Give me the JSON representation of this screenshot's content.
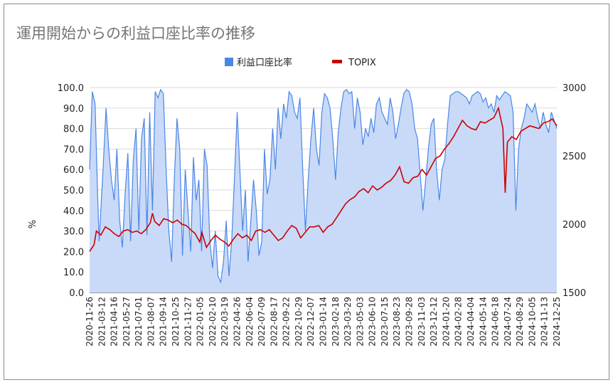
{
  "chart_data": {
    "type": "area+line",
    "title": "運用開始からの利益口座比率の推移",
    "ylabel": "%",
    "ylabel_right": "",
    "legend": [
      "利益口座比率",
      "TOPIX"
    ],
    "legend_position": "top",
    "ylim": [
      0,
      100
    ],
    "ylim_right": [
      1500,
      3000
    ],
    "yticks": [
      "0.0",
      "10.0",
      "20.0",
      "30.0",
      "40.0",
      "50.0",
      "60.0",
      "70.0",
      "80.0",
      "90.0",
      "100.0"
    ],
    "yticks_right": [
      "1500",
      "2000",
      "2500",
      "3000"
    ],
    "xticks": [
      "2020-11-26",
      "2021-03-12",
      "2021-04-16",
      "2021-05-27",
      "2021-07-01",
      "2021-08-07",
      "2021-09-14",
      "2021-10-25",
      "2021-11-27",
      "2022-01-05",
      "2022-02-10",
      "2022-03-19",
      "2022-04-26",
      "2022-06-04",
      "2022-07-09",
      "2022-08-17",
      "2022-09-22",
      "2022-10-29",
      "2022-12-07",
      "2023-01-14",
      "2023-02-18",
      "2023-03-29",
      "2023-05-03",
      "2023-06-10",
      "2023-07-15",
      "2023-08-23",
      "2023-09-28",
      "2023-11-03",
      "2023-12-12",
      "2024-01-20",
      "2024-02-28",
      "2024-04-04",
      "2024-05-14",
      "2024-06-18",
      "2024-07-24",
      "2024-08-29",
      "2024-10-05",
      "2024-11-13",
      "2024-12-25"
    ],
    "series": [
      {
        "name": "利益口座比率",
        "axis": "left",
        "color": "#4a86e8",
        "fill": "#c9daf8",
        "values": [
          [
            0.0,
            60
          ],
          [
            0.1,
            98
          ],
          [
            0.2,
            92
          ],
          [
            0.3,
            45
          ],
          [
            0.35,
            25
          ],
          [
            0.5,
            62
          ],
          [
            0.6,
            90
          ],
          [
            0.7,
            70
          ],
          [
            0.8,
            55
          ],
          [
            0.9,
            45
          ],
          [
            1.0,
            70
          ],
          [
            1.1,
            35
          ],
          [
            1.2,
            22
          ],
          [
            1.3,
            48
          ],
          [
            1.4,
            68
          ],
          [
            1.5,
            25
          ],
          [
            1.6,
            65
          ],
          [
            1.7,
            80
          ],
          [
            1.8,
            30
          ],
          [
            1.9,
            75
          ],
          [
            2.0,
            85
          ],
          [
            2.1,
            28
          ],
          [
            2.2,
            88
          ],
          [
            2.3,
            40
          ],
          [
            2.4,
            98
          ],
          [
            2.5,
            95
          ],
          [
            2.6,
            99
          ],
          [
            2.7,
            97
          ],
          [
            2.8,
            60
          ],
          [
            2.9,
            30
          ],
          [
            3.0,
            15
          ],
          [
            3.1,
            55
          ],
          [
            3.2,
            85
          ],
          [
            3.3,
            70
          ],
          [
            3.4,
            18
          ],
          [
            3.5,
            60
          ],
          [
            3.6,
            40
          ],
          [
            3.7,
            20
          ],
          [
            3.8,
            66
          ],
          [
            3.9,
            45
          ],
          [
            4.0,
            55
          ],
          [
            4.1,
            20
          ],
          [
            4.2,
            70
          ],
          [
            4.3,
            62
          ],
          [
            4.4,
            25
          ],
          [
            4.5,
            12
          ],
          [
            4.6,
            30
          ],
          [
            4.7,
            8
          ],
          [
            4.8,
            5
          ],
          [
            4.9,
            15
          ],
          [
            5.0,
            35
          ],
          [
            5.1,
            8
          ],
          [
            5.2,
            25
          ],
          [
            5.3,
            55
          ],
          [
            5.4,
            88
          ],
          [
            5.5,
            60
          ],
          [
            5.6,
            30
          ],
          [
            5.7,
            50
          ],
          [
            5.8,
            15
          ],
          [
            5.9,
            35
          ],
          [
            6.0,
            55
          ],
          [
            6.1,
            40
          ],
          [
            6.2,
            18
          ],
          [
            6.3,
            25
          ],
          [
            6.4,
            70
          ],
          [
            6.5,
            48
          ],
          [
            6.6,
            55
          ],
          [
            6.7,
            80
          ],
          [
            6.8,
            60
          ],
          [
            6.9,
            90
          ],
          [
            7.0,
            75
          ],
          [
            7.1,
            92
          ],
          [
            7.2,
            85
          ],
          [
            7.3,
            98
          ],
          [
            7.4,
            96
          ],
          [
            7.5,
            88
          ],
          [
            7.6,
            85
          ],
          [
            7.7,
            95
          ],
          [
            7.8,
            60
          ],
          [
            7.9,
            30
          ],
          [
            8.0,
            55
          ],
          [
            8.1,
            75
          ],
          [
            8.2,
            90
          ],
          [
            8.3,
            70
          ],
          [
            8.4,
            62
          ],
          [
            8.5,
            88
          ],
          [
            8.6,
            97
          ],
          [
            8.7,
            95
          ],
          [
            8.8,
            90
          ],
          [
            8.9,
            75
          ],
          [
            9.0,
            55
          ],
          [
            9.1,
            78
          ],
          [
            9.2,
            90
          ],
          [
            9.3,
            98
          ],
          [
            9.4,
            99
          ],
          [
            9.5,
            97
          ],
          [
            9.6,
            98
          ],
          [
            9.7,
            80
          ],
          [
            9.8,
            95
          ],
          [
            9.9,
            88
          ],
          [
            10.0,
            72
          ],
          [
            10.1,
            80
          ],
          [
            10.2,
            76
          ],
          [
            10.3,
            85
          ],
          [
            10.4,
            78
          ],
          [
            10.5,
            92
          ],
          [
            10.6,
            95
          ],
          [
            10.7,
            88
          ],
          [
            10.8,
            85
          ],
          [
            10.9,
            82
          ],
          [
            11.0,
            95
          ],
          [
            11.1,
            88
          ],
          [
            11.2,
            75
          ],
          [
            11.3,
            82
          ],
          [
            11.4,
            90
          ],
          [
            11.5,
            97
          ],
          [
            11.6,
            99
          ],
          [
            11.7,
            98
          ],
          [
            11.8,
            92
          ],
          [
            11.9,
            80
          ],
          [
            12.0,
            75
          ],
          [
            12.1,
            58
          ],
          [
            12.2,
            40
          ],
          [
            12.3,
            55
          ],
          [
            12.4,
            70
          ],
          [
            12.5,
            82
          ],
          [
            12.6,
            85
          ],
          [
            12.7,
            60
          ],
          [
            12.8,
            45
          ],
          [
            12.9,
            60
          ],
          [
            13.0,
            65
          ],
          [
            13.1,
            82
          ],
          [
            13.2,
            96
          ],
          [
            13.3,
            97
          ],
          [
            13.4,
            98
          ],
          [
            13.5,
            98
          ],
          [
            13.6,
            97
          ],
          [
            13.7,
            96
          ],
          [
            13.8,
            95
          ],
          [
            13.9,
            92
          ],
          [
            14.0,
            96
          ],
          [
            14.1,
            97
          ],
          [
            14.2,
            98
          ],
          [
            14.3,
            97
          ],
          [
            14.4,
            93
          ],
          [
            14.5,
            95
          ],
          [
            14.6,
            90
          ],
          [
            14.7,
            92
          ],
          [
            14.8,
            88
          ],
          [
            14.9,
            96
          ],
          [
            15.0,
            94
          ],
          [
            15.1,
            96
          ],
          [
            15.2,
            98
          ],
          [
            15.3,
            97
          ],
          [
            15.4,
            96
          ],
          [
            15.5,
            88
          ],
          [
            15.6,
            40
          ],
          [
            15.7,
            70
          ],
          [
            15.8,
            80
          ],
          [
            15.9,
            85
          ],
          [
            16.0,
            92
          ],
          [
            16.1,
            90
          ],
          [
            16.2,
            88
          ],
          [
            16.3,
            92
          ],
          [
            16.4,
            85
          ],
          [
            16.5,
            80
          ],
          [
            16.6,
            88
          ],
          [
            16.7,
            82
          ],
          [
            16.8,
            78
          ],
          [
            16.9,
            88
          ],
          [
            17.0,
            84
          ],
          [
            17.1,
            80
          ]
        ]
      },
      {
        "name": "TOPIX",
        "axis": "right",
        "color": "#cc0000",
        "values": [
          [
            0.0,
            1800
          ],
          [
            0.2,
            1850
          ],
          [
            0.3,
            1950
          ],
          [
            0.5,
            1920
          ],
          [
            0.7,
            1980
          ],
          [
            0.9,
            1960
          ],
          [
            1.1,
            1930
          ],
          [
            1.3,
            1910
          ],
          [
            1.5,
            1950
          ],
          [
            1.7,
            1960
          ],
          [
            1.9,
            1940
          ],
          [
            2.1,
            1950
          ],
          [
            2.3,
            1930
          ],
          [
            2.5,
            1960
          ],
          [
            2.7,
            2010
          ],
          [
            2.8,
            2080
          ],
          [
            2.9,
            2020
          ],
          [
            3.1,
            1990
          ],
          [
            3.3,
            2040
          ],
          [
            3.5,
            2030
          ],
          [
            3.7,
            2010
          ],
          [
            3.9,
            2030
          ],
          [
            4.1,
            2000
          ],
          [
            4.3,
            1990
          ],
          [
            4.5,
            1960
          ],
          [
            4.7,
            1930
          ],
          [
            4.9,
            1870
          ],
          [
            5.0,
            1940
          ],
          [
            5.2,
            1830
          ],
          [
            5.4,
            1880
          ],
          [
            5.6,
            1920
          ],
          [
            5.8,
            1890
          ],
          [
            6.0,
            1870
          ],
          [
            6.2,
            1840
          ],
          [
            6.4,
            1890
          ],
          [
            6.6,
            1930
          ],
          [
            6.8,
            1900
          ],
          [
            7.0,
            1920
          ],
          [
            7.2,
            1880
          ],
          [
            7.4,
            1950
          ],
          [
            7.6,
            1960
          ],
          [
            7.8,
            1940
          ],
          [
            8.0,
            1960
          ],
          [
            8.2,
            1920
          ],
          [
            8.4,
            1880
          ],
          [
            8.6,
            1900
          ],
          [
            8.8,
            1950
          ],
          [
            9.0,
            1990
          ],
          [
            9.2,
            1970
          ],
          [
            9.4,
            1900
          ],
          [
            9.6,
            1940
          ],
          [
            9.8,
            1980
          ],
          [
            10.0,
            1980
          ],
          [
            10.2,
            1990
          ],
          [
            10.4,
            1940
          ],
          [
            10.6,
            1980
          ],
          [
            10.8,
            2000
          ],
          [
            11.0,
            2050
          ],
          [
            11.2,
            2100
          ],
          [
            11.4,
            2150
          ],
          [
            11.6,
            2180
          ],
          [
            11.8,
            2200
          ],
          [
            12.0,
            2240
          ],
          [
            12.2,
            2260
          ],
          [
            12.4,
            2230
          ],
          [
            12.6,
            2280
          ],
          [
            12.8,
            2250
          ],
          [
            13.0,
            2270
          ],
          [
            13.2,
            2300
          ],
          [
            13.4,
            2320
          ],
          [
            13.6,
            2360
          ],
          [
            13.8,
            2420
          ],
          [
            14.0,
            2310
          ],
          [
            14.2,
            2300
          ],
          [
            14.4,
            2340
          ],
          [
            14.6,
            2350
          ],
          [
            14.8,
            2400
          ],
          [
            15.0,
            2360
          ],
          [
            15.2,
            2420
          ],
          [
            15.4,
            2480
          ],
          [
            15.6,
            2500
          ],
          [
            15.8,
            2550
          ],
          [
            16.0,
            2590
          ],
          [
            16.2,
            2640
          ],
          [
            16.4,
            2700
          ],
          [
            16.6,
            2760
          ],
          [
            16.8,
            2720
          ],
          [
            17.0,
            2700
          ],
          [
            17.2,
            2690
          ],
          [
            17.4,
            2750
          ],
          [
            17.6,
            2740
          ],
          [
            17.8,
            2760
          ],
          [
            18.0,
            2780
          ],
          [
            18.2,
            2850
          ],
          [
            18.4,
            2700
          ],
          [
            18.5,
            2230
          ],
          [
            18.6,
            2600
          ],
          [
            18.8,
            2640
          ],
          [
            19.0,
            2620
          ],
          [
            19.2,
            2680
          ],
          [
            19.4,
            2700
          ],
          [
            19.6,
            2720
          ],
          [
            19.8,
            2710
          ],
          [
            20.0,
            2700
          ],
          [
            20.2,
            2740
          ],
          [
            20.4,
            2750
          ],
          [
            20.6,
            2770
          ],
          [
            20.8,
            2720
          ]
        ]
      }
    ]
  }
}
